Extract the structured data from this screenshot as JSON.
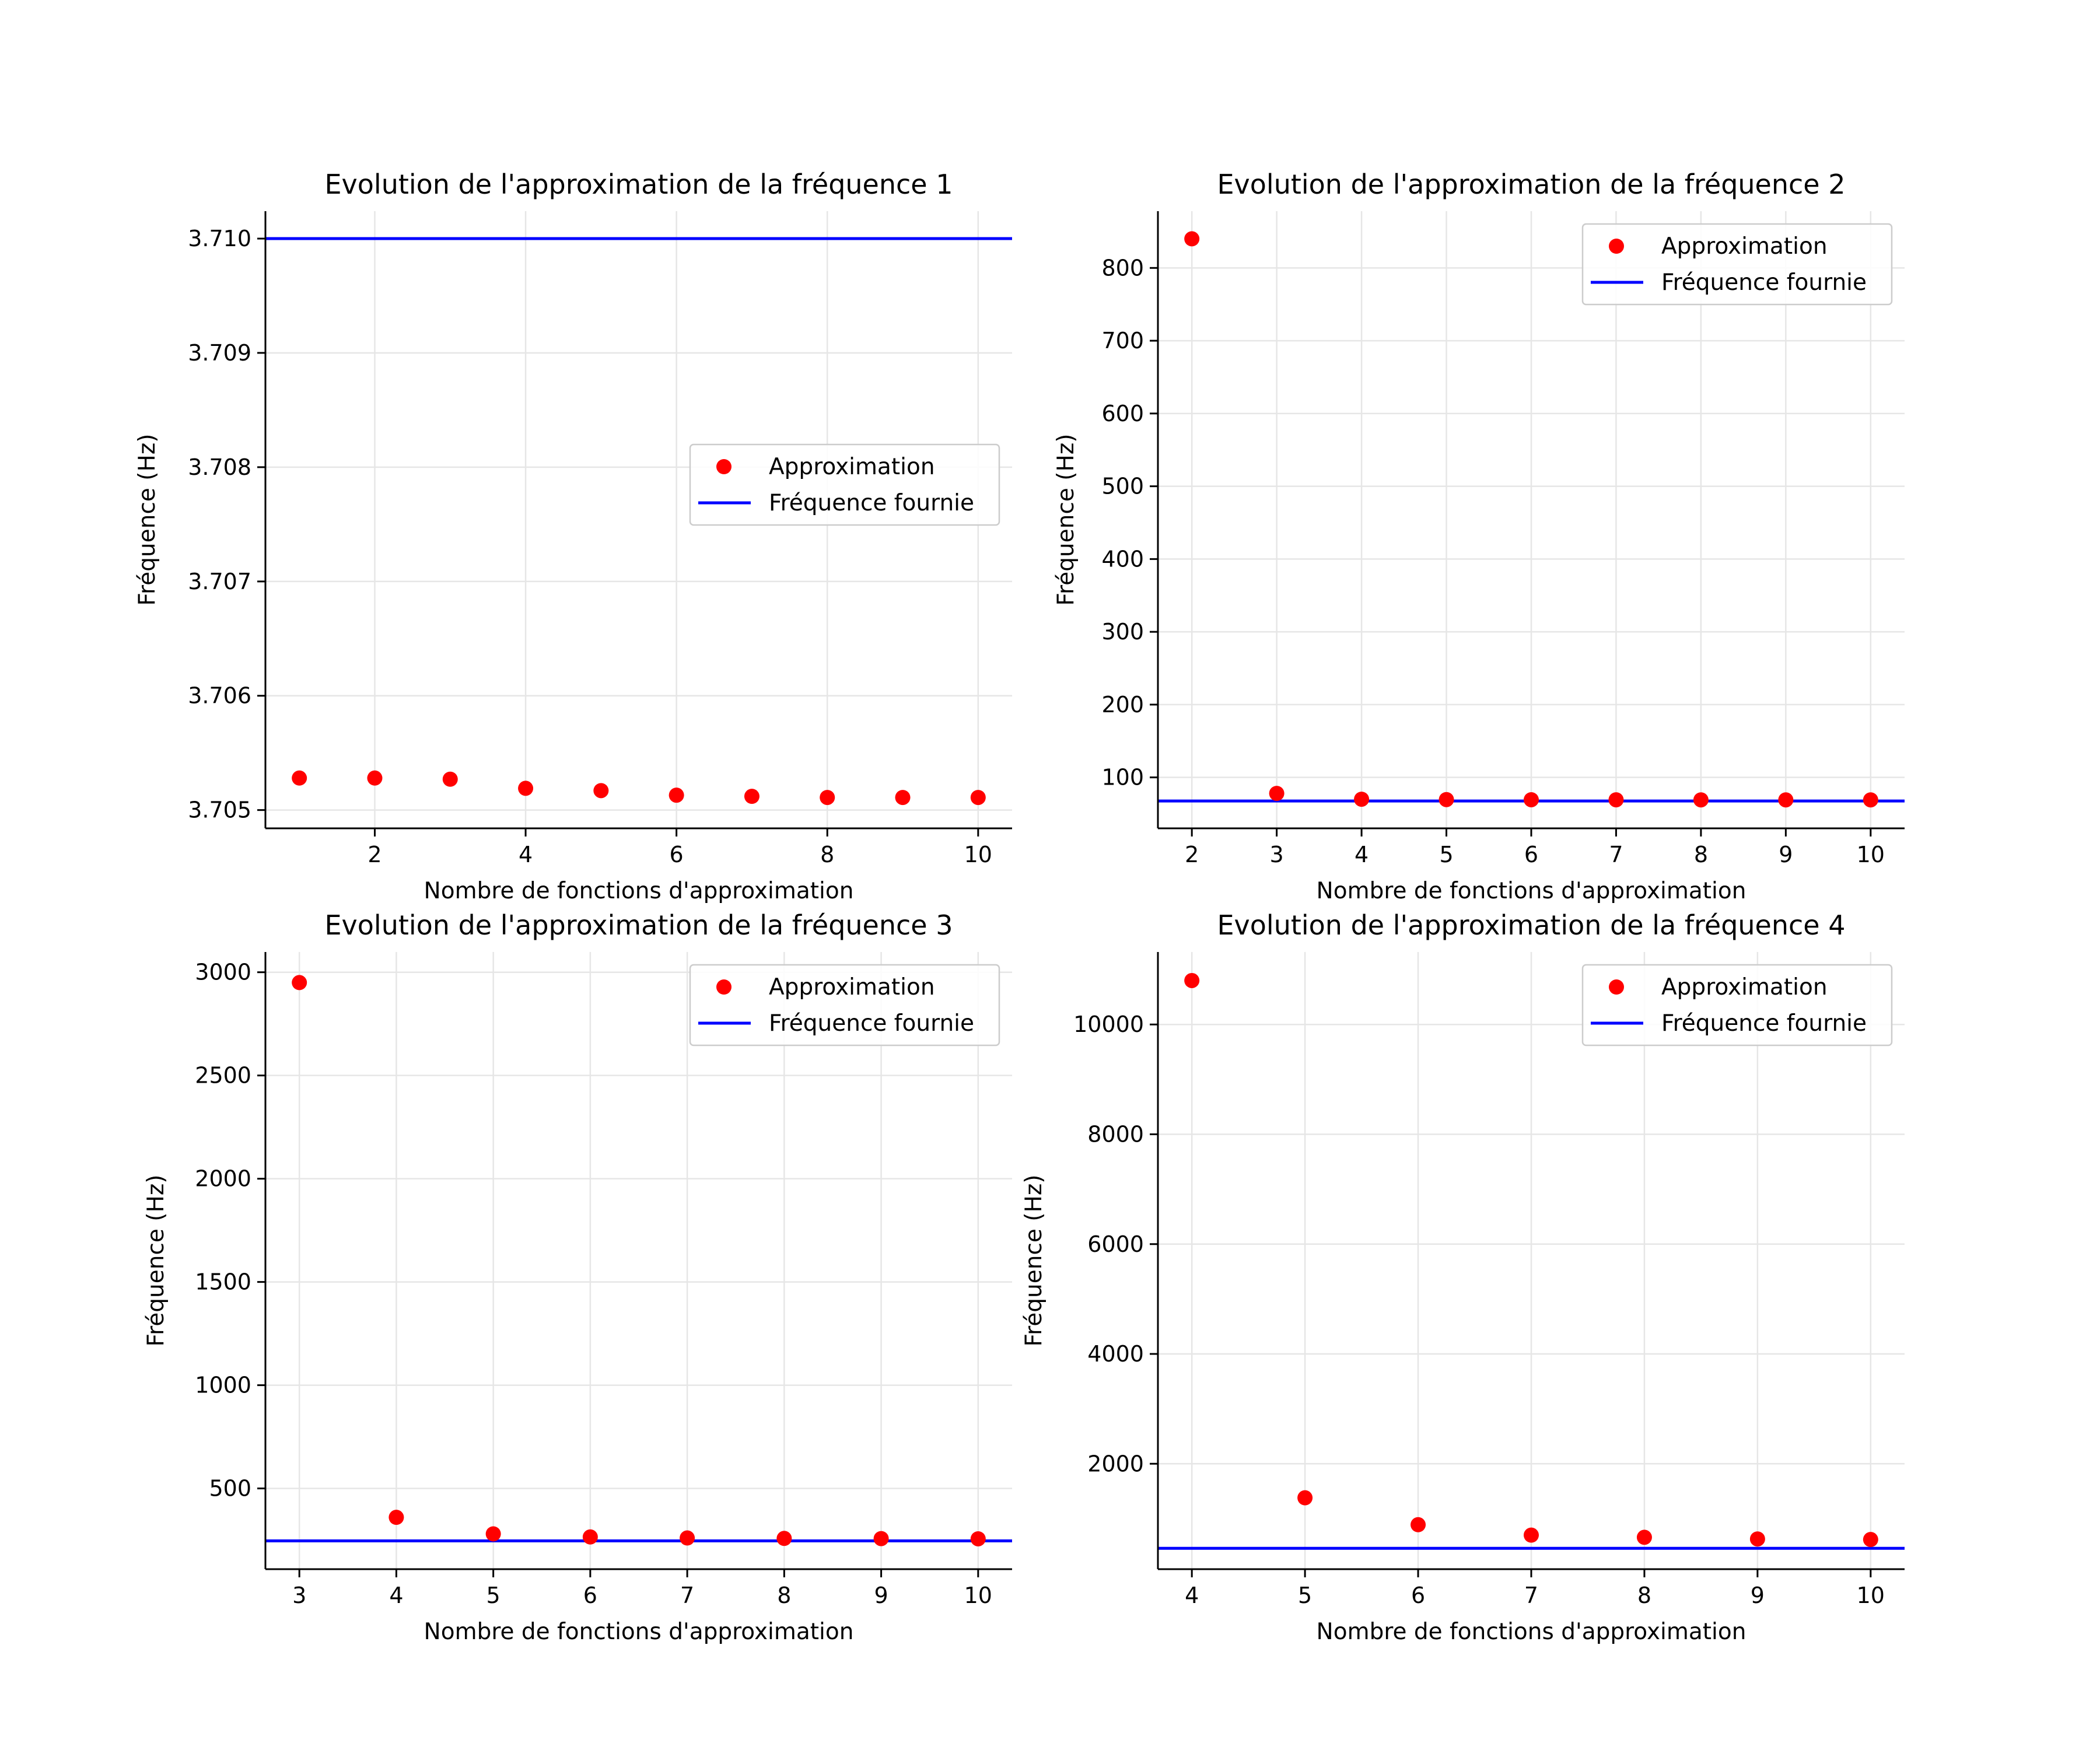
{
  "colors": {
    "approximation": "#ff0000",
    "provided_frequency": "#0000ff",
    "grid": "#e6e6e6",
    "axis": "#000000",
    "legend_border": "#cccccc"
  },
  "chart_data": [
    {
      "type": "scatter",
      "title": "Evolution de l'approximation de la fréquence 1",
      "xlabel": "Nombre de fonctions d'approximation",
      "ylabel": "Fréquence (Hz)",
      "xlim": [
        0.55,
        10.45
      ],
      "ylim": [
        3.70484,
        3.71024
      ],
      "xticks": [
        2,
        4,
        6,
        8,
        10
      ],
      "yticks": [
        3.705,
        3.706,
        3.707,
        3.708,
        3.709,
        3.71
      ],
      "ytick_labels": [
        "3.705",
        "3.706",
        "3.707",
        "3.708",
        "3.709",
        "3.710"
      ],
      "grid": true,
      "legend_position": "center-right",
      "legend_entries": [
        "Approximation",
        "Fréquence fournie"
      ],
      "series": [
        {
          "name": "Approximation",
          "kind": "scatter",
          "x": [
            1,
            2,
            3,
            4,
            5,
            6,
            7,
            8,
            9,
            10
          ],
          "y": [
            3.70528,
            3.70528,
            3.70527,
            3.70519,
            3.70517,
            3.70513,
            3.70512,
            3.70511,
            3.70511,
            3.70511
          ]
        },
        {
          "name": "Fréquence fournie",
          "kind": "hline",
          "y": 3.71
        }
      ]
    },
    {
      "type": "scatter",
      "title": "Evolution de l'approximation de la fréquence 2",
      "xlabel": "Nombre de fonctions d'approximation",
      "ylabel": "Fréquence (Hz)",
      "xlim": [
        1.6,
        10.4
      ],
      "ylim": [
        30,
        878
      ],
      "xticks": [
        2,
        3,
        4,
        5,
        6,
        7,
        8,
        9,
        10
      ],
      "yticks": [
        100,
        200,
        300,
        400,
        500,
        600,
        700,
        800
      ],
      "ytick_labels": [
        "100",
        "200",
        "300",
        "400",
        "500",
        "600",
        "700",
        "800"
      ],
      "grid": true,
      "legend_position": "upper-right",
      "legend_entries": [
        "Approximation",
        "Fréquence fournie"
      ],
      "series": [
        {
          "name": "Approximation",
          "kind": "scatter",
          "x": [
            2,
            3,
            4,
            5,
            6,
            7,
            8,
            9,
            10
          ],
          "y": [
            840,
            78,
            70,
            69.5,
            69.3,
            69.2,
            69.1,
            69.1,
            69.1
          ]
        },
        {
          "name": "Fréquence fournie",
          "kind": "hline",
          "y": 67.6
        }
      ]
    },
    {
      "type": "scatter",
      "title": "Evolution de l'approximation de la fréquence 3",
      "xlabel": "Nombre de fonctions d'approximation",
      "ylabel": "Fréquence (Hz)",
      "xlim": [
        2.65,
        10.35
      ],
      "ylim": [
        109,
        3098
      ],
      "xticks": [
        3,
        4,
        5,
        6,
        7,
        8,
        9,
        10
      ],
      "yticks": [
        500,
        1000,
        1500,
        2000,
        2500,
        3000
      ],
      "ytick_labels": [
        "500",
        "1000",
        "1500",
        "2000",
        "2500",
        "3000"
      ],
      "grid": true,
      "legend_position": "upper-right",
      "legend_entries": [
        "Approximation",
        "Fréquence fournie"
      ],
      "series": [
        {
          "name": "Approximation",
          "kind": "scatter",
          "x": [
            3,
            4,
            5,
            6,
            7,
            8,
            9,
            10
          ],
          "y": [
            2950,
            360,
            280,
            265,
            260,
            258,
            257,
            256
          ]
        },
        {
          "name": "Fréquence fournie",
          "kind": "hline",
          "y": 246
        }
      ]
    },
    {
      "type": "scatter",
      "title": "Evolution de l'approximation de la fréquence 4",
      "xlabel": "Nombre de fonctions d'approximation",
      "ylabel": "Fréquence (Hz)",
      "xlim": [
        3.7,
        10.3
      ],
      "ylim": [
        80,
        11320
      ],
      "xticks": [
        4,
        5,
        6,
        7,
        8,
        9,
        10
      ],
      "yticks": [
        2000,
        4000,
        6000,
        8000,
        10000
      ],
      "ytick_labels": [
        "2000",
        "4000",
        "6000",
        "8000",
        "10000"
      ],
      "grid": true,
      "legend_position": "upper-right",
      "legend_entries": [
        "Approximation",
        "Fréquence fournie"
      ],
      "series": [
        {
          "name": "Approximation",
          "kind": "scatter",
          "x": [
            4,
            5,
            6,
            7,
            8,
            9,
            10
          ],
          "y": [
            10800,
            1380,
            890,
            700,
            660,
            630,
            620
          ]
        },
        {
          "name": "Fréquence fournie",
          "kind": "hline",
          "y": 460
        }
      ]
    }
  ]
}
